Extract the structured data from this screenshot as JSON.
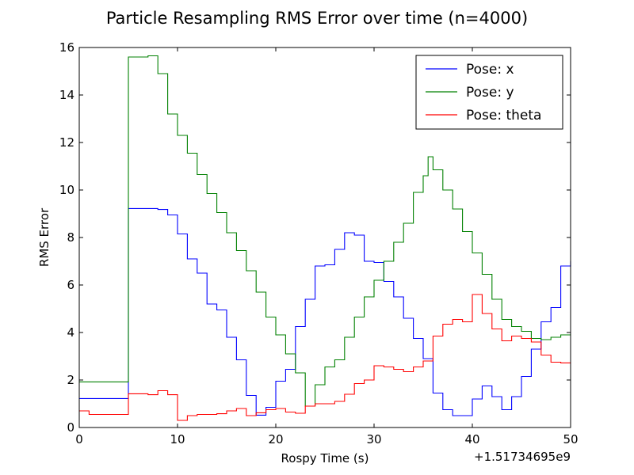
{
  "chart_data": {
    "type": "line",
    "title": "Particle Resampling RMS Error over time (n=4000)",
    "xlabel": "Rospy Time (s)",
    "ylabel": "RMS Error",
    "x_offset_label": "+1.51734695e9",
    "xlim": [
      0,
      50
    ],
    "ylim": [
      0,
      16
    ],
    "xticks": [
      0,
      10,
      20,
      30,
      40,
      50
    ],
    "yticks": [
      0,
      2,
      4,
      6,
      8,
      10,
      12,
      14,
      16
    ],
    "step": true,
    "grid": false,
    "legend_position": "top-right",
    "series": [
      {
        "name": "Pose: x",
        "color": "#0000ff",
        "points": [
          [
            0,
            1.22
          ],
          [
            5,
            1.22
          ],
          [
            5,
            9.22
          ],
          [
            8,
            9.18
          ],
          [
            9,
            8.95
          ],
          [
            10,
            8.15
          ],
          [
            11,
            7.1
          ],
          [
            12,
            6.5
          ],
          [
            13,
            5.2
          ],
          [
            14,
            4.95
          ],
          [
            15,
            3.8
          ],
          [
            16,
            2.85
          ],
          [
            17,
            1.35
          ],
          [
            18,
            0.52
          ],
          [
            19,
            0.85
          ],
          [
            20,
            1.95
          ],
          [
            21,
            2.45
          ],
          [
            22,
            4.25
          ],
          [
            23,
            5.4
          ],
          [
            24,
            6.8
          ],
          [
            25,
            6.85
          ],
          [
            26,
            7.5
          ],
          [
            27,
            8.2
          ],
          [
            28,
            8.1
          ],
          [
            29,
            7.0
          ],
          [
            30,
            6.95
          ],
          [
            31,
            6.15
          ],
          [
            32,
            5.5
          ],
          [
            33,
            4.6
          ],
          [
            34,
            3.75
          ],
          [
            35,
            2.9
          ],
          [
            36,
            1.45
          ],
          [
            37,
            0.75
          ],
          [
            38,
            0.5
          ],
          [
            39,
            0.5
          ],
          [
            40,
            1.2
          ],
          [
            41,
            1.75
          ],
          [
            42,
            1.3
          ],
          [
            43,
            0.75
          ],
          [
            44,
            1.3
          ],
          [
            45,
            2.15
          ],
          [
            46,
            3.3
          ],
          [
            47,
            4.45
          ],
          [
            48,
            5.05
          ],
          [
            49,
            6.8
          ],
          [
            50,
            7.0
          ]
        ]
      },
      {
        "name": "Pose: y",
        "color": "#008000",
        "points": [
          [
            0,
            1.92
          ],
          [
            5,
            1.92
          ],
          [
            5,
            15.6
          ],
          [
            6,
            15.6
          ],
          [
            7,
            15.65
          ],
          [
            8,
            14.9
          ],
          [
            9,
            13.2
          ],
          [
            10,
            12.3
          ],
          [
            11,
            11.55
          ],
          [
            12,
            10.65
          ],
          [
            13,
            9.85
          ],
          [
            14,
            9.05
          ],
          [
            15,
            8.2
          ],
          [
            16,
            7.45
          ],
          [
            17,
            6.6
          ],
          [
            18,
            5.7
          ],
          [
            19,
            4.65
          ],
          [
            20,
            3.9
          ],
          [
            21,
            3.1
          ],
          [
            22,
            2.3
          ],
          [
            23,
            0.9
          ],
          [
            24,
            1.8
          ],
          [
            25,
            2.55
          ],
          [
            26,
            2.85
          ],
          [
            27,
            3.8
          ],
          [
            28,
            4.65
          ],
          [
            29,
            5.5
          ],
          [
            30,
            6.2
          ],
          [
            31,
            7.0
          ],
          [
            32,
            7.8
          ],
          [
            33,
            8.6
          ],
          [
            34,
            9.9
          ],
          [
            35,
            10.6
          ],
          [
            35.5,
            11.4
          ],
          [
            36,
            10.85
          ],
          [
            37,
            10.0
          ],
          [
            38,
            9.2
          ],
          [
            39,
            8.25
          ],
          [
            40,
            7.35
          ],
          [
            41,
            6.45
          ],
          [
            42,
            5.4
          ],
          [
            43,
            4.55
          ],
          [
            44,
            4.25
          ],
          [
            45,
            4.05
          ],
          [
            46,
            3.75
          ],
          [
            47,
            3.7
          ],
          [
            48,
            3.8
          ],
          [
            49,
            3.9
          ],
          [
            50,
            3.9
          ]
        ]
      },
      {
        "name": "Pose: theta",
        "color": "#ff0000",
        "points": [
          [
            0,
            0.7
          ],
          [
            1,
            0.55
          ],
          [
            5,
            0.55
          ],
          [
            5,
            1.42
          ],
          [
            7,
            1.38
          ],
          [
            8,
            1.55
          ],
          [
            9,
            1.38
          ],
          [
            10,
            0.3
          ],
          [
            11,
            0.5
          ],
          [
            12,
            0.55
          ],
          [
            14,
            0.58
          ],
          [
            15,
            0.7
          ],
          [
            16,
            0.8
          ],
          [
            17,
            0.5
          ],
          [
            18,
            0.62
          ],
          [
            19,
            0.75
          ],
          [
            20,
            0.8
          ],
          [
            21,
            0.65
          ],
          [
            22,
            0.6
          ],
          [
            23,
            0.9
          ],
          [
            24,
            1.0
          ],
          [
            25,
            1.0
          ],
          [
            26,
            1.1
          ],
          [
            27,
            1.4
          ],
          [
            28,
            1.85
          ],
          [
            29,
            2.0
          ],
          [
            30,
            2.6
          ],
          [
            31,
            2.55
          ],
          [
            32,
            2.45
          ],
          [
            33,
            2.35
          ],
          [
            34,
            2.55
          ],
          [
            35,
            2.8
          ],
          [
            36,
            3.85
          ],
          [
            37,
            4.35
          ],
          [
            38,
            4.55
          ],
          [
            39,
            4.45
          ],
          [
            40,
            5.6
          ],
          [
            41,
            4.8
          ],
          [
            42,
            4.15
          ],
          [
            43,
            3.65
          ],
          [
            44,
            3.85
          ],
          [
            45,
            3.75
          ],
          [
            46,
            3.6
          ],
          [
            47,
            3.05
          ],
          [
            48,
            2.75
          ],
          [
            49,
            2.72
          ],
          [
            50,
            2.72
          ]
        ]
      }
    ]
  }
}
